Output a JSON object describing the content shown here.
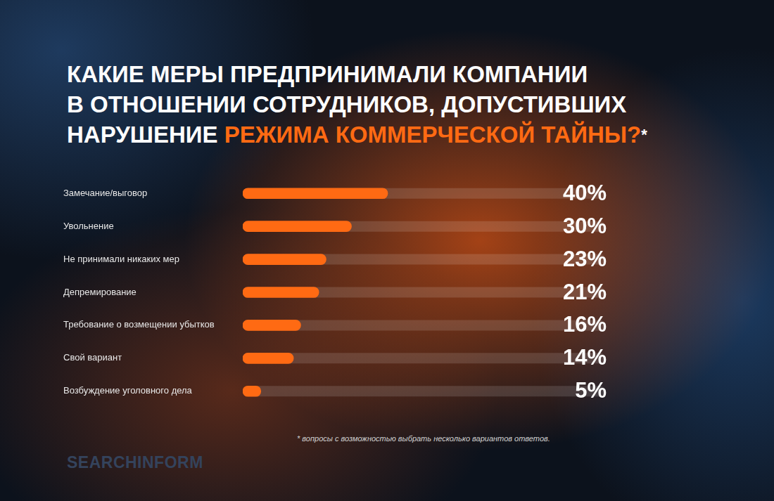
{
  "chart_data": {
    "type": "bar",
    "orientation": "horizontal",
    "title": [
      "КАКИЕ МЕРЫ ПРЕДПРИНИМАЛИ КОМПАНИИ",
      "В ОТНОШЕНИИ СОТРУДНИКОВ, ДОПУСТИВШИХ",
      "НАРУШЕНИЕ РЕЖИМА КОММЕРЧЕСКОЙ ТАЙНЫ?*"
    ],
    "title_highlight": "РЕЖИМА КОММЕРЧЕСКОЙ ТАЙНЫ?",
    "categories": [
      "Замечание/выговор",
      "Увольнение",
      "Не принимали никаких мер",
      "Депремирование",
      "Требование о возмещении убытков",
      "Свой вариант",
      "Возбуждение уголовного дела"
    ],
    "values": [
      40,
      30,
      23,
      21,
      16,
      14,
      5
    ],
    "value_labels": [
      "40%",
      "30%",
      "23%",
      "21%",
      "16%",
      "14%",
      "5%"
    ],
    "color": "#ff6a13",
    "xlim": [
      0,
      100
    ],
    "grid": false,
    "tick_labels": "y",
    "data_labels": true,
    "footnote": "*   вопросы с возможностью выбрать несколько вариантов ответов.",
    "logo": "SEARCHINFORM"
  }
}
